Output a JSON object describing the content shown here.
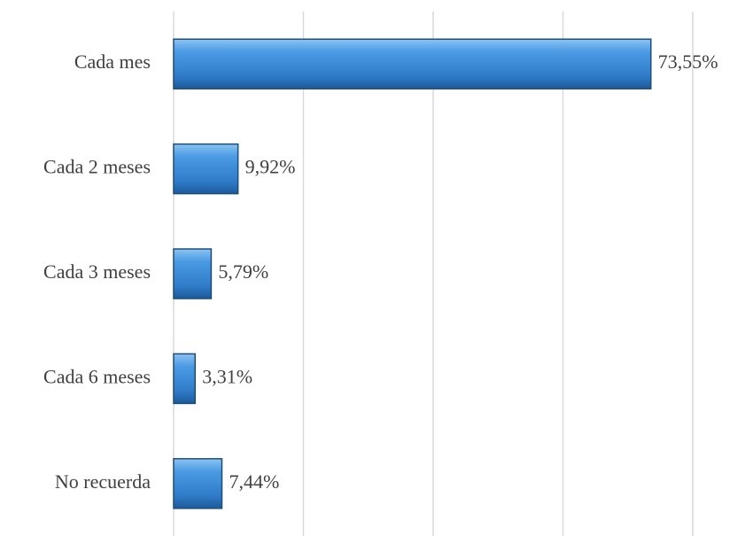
{
  "chart_data": {
    "type": "bar",
    "orientation": "horizontal",
    "categories": [
      "Cada mes",
      "Cada 2 meses",
      "Cada 3 meses",
      "Cada 6 meses",
      "No recuerda"
    ],
    "values": [
      73.55,
      9.92,
      5.79,
      3.31,
      7.44
    ],
    "value_labels": [
      "73,55%",
      "9,92%",
      "5,79%",
      "3,31%",
      "7,44%"
    ],
    "color": "#3a86d4",
    "xlim": [
      0,
      80
    ],
    "xticks": [
      0,
      20,
      40,
      60,
      80
    ],
    "grid": true
  }
}
